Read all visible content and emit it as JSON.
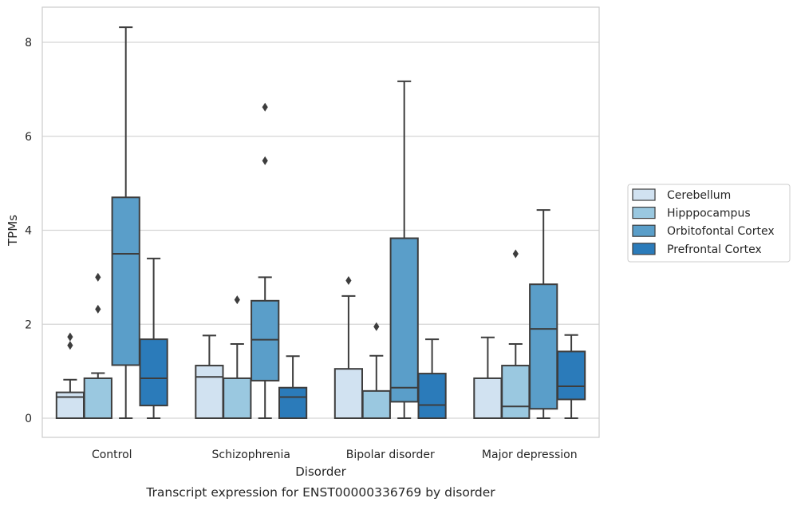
{
  "chart_data": {
    "type": "box",
    "caption": "Transcript expression for ENST00000336769 by disorder",
    "xlabel": "Disorder",
    "ylabel": "TPMs",
    "ylim": [
      -0.4,
      8.75
    ],
    "yticks": [
      "0",
      "2",
      "4",
      "6",
      "8"
    ],
    "grid": "horizontal",
    "legend_position": "right",
    "categories": [
      "Control",
      "Schizophrenia",
      "Bipolar disorder",
      "Major depression"
    ],
    "series": [
      {
        "name": "Cerebellum",
        "color": "#d1e2f1",
        "boxes": [
          {
            "whisker_low": 0,
            "q1": 0,
            "median": 0.45,
            "q3": 0.55,
            "whisker_high": 0.82,
            "outliers": [
              1.55,
              1.73
            ]
          },
          {
            "whisker_low": 0,
            "q1": 0,
            "median": 0.88,
            "q3": 1.12,
            "whisker_high": 1.76,
            "outliers": []
          },
          {
            "whisker_low": 0,
            "q1": 0,
            "median": 0,
            "q3": 1.05,
            "whisker_high": 2.6,
            "outliers": [
              2.93
            ]
          },
          {
            "whisker_low": 0,
            "q1": 0,
            "median": 0,
            "q3": 0.85,
            "whisker_high": 1.72,
            "outliers": []
          }
        ]
      },
      {
        "name": "Hipppocampus",
        "color": "#9ac8e0",
        "boxes": [
          {
            "whisker_low": 0,
            "q1": 0,
            "median": 0,
            "q3": 0.85,
            "whisker_high": 0.96,
            "outliers": [
              2.32,
              3.0
            ]
          },
          {
            "whisker_low": 0,
            "q1": 0,
            "median": 0,
            "q3": 0.85,
            "whisker_high": 1.58,
            "outliers": [
              2.52
            ]
          },
          {
            "whisker_low": 0,
            "q1": 0,
            "median": 0,
            "q3": 0.58,
            "whisker_high": 1.33,
            "outliers": [
              1.95
            ]
          },
          {
            "whisker_low": 0,
            "q1": 0,
            "median": 0.25,
            "q3": 1.12,
            "whisker_high": 1.58,
            "outliers": [
              3.5
            ]
          }
        ]
      },
      {
        "name": "Orbitofontal Cortex",
        "color": "#5a9ec9",
        "boxes": [
          {
            "whisker_low": 0,
            "q1": 1.13,
            "median": 3.5,
            "q3": 4.7,
            "whisker_high": 8.32,
            "outliers": []
          },
          {
            "whisker_low": 0,
            "q1": 0.8,
            "median": 1.67,
            "q3": 2.5,
            "whisker_high": 3.0,
            "outliers": [
              5.48,
              6.62
            ]
          },
          {
            "whisker_low": 0,
            "q1": 0.35,
            "median": 0.65,
            "q3": 3.83,
            "whisker_high": 7.17,
            "outliers": []
          },
          {
            "whisker_low": 0,
            "q1": 0.2,
            "median": 1.9,
            "q3": 2.85,
            "whisker_high": 4.43,
            "outliers": []
          }
        ]
      },
      {
        "name": "Prefrontal Cortex",
        "color": "#2b7bba",
        "boxes": [
          {
            "whisker_low": 0,
            "q1": 0.27,
            "median": 0.85,
            "q3": 1.68,
            "whisker_high": 3.4,
            "outliers": []
          },
          {
            "whisker_low": 0,
            "q1": 0,
            "median": 0.45,
            "q3": 0.65,
            "whisker_high": 1.32,
            "outliers": []
          },
          {
            "whisker_low": 0,
            "q1": 0,
            "median": 0.28,
            "q3": 0.95,
            "whisker_high": 1.68,
            "outliers": []
          },
          {
            "whisker_low": 0,
            "q1": 0.4,
            "median": 0.68,
            "q3": 1.42,
            "whisker_high": 1.77,
            "outliers": []
          }
        ]
      }
    ]
  }
}
